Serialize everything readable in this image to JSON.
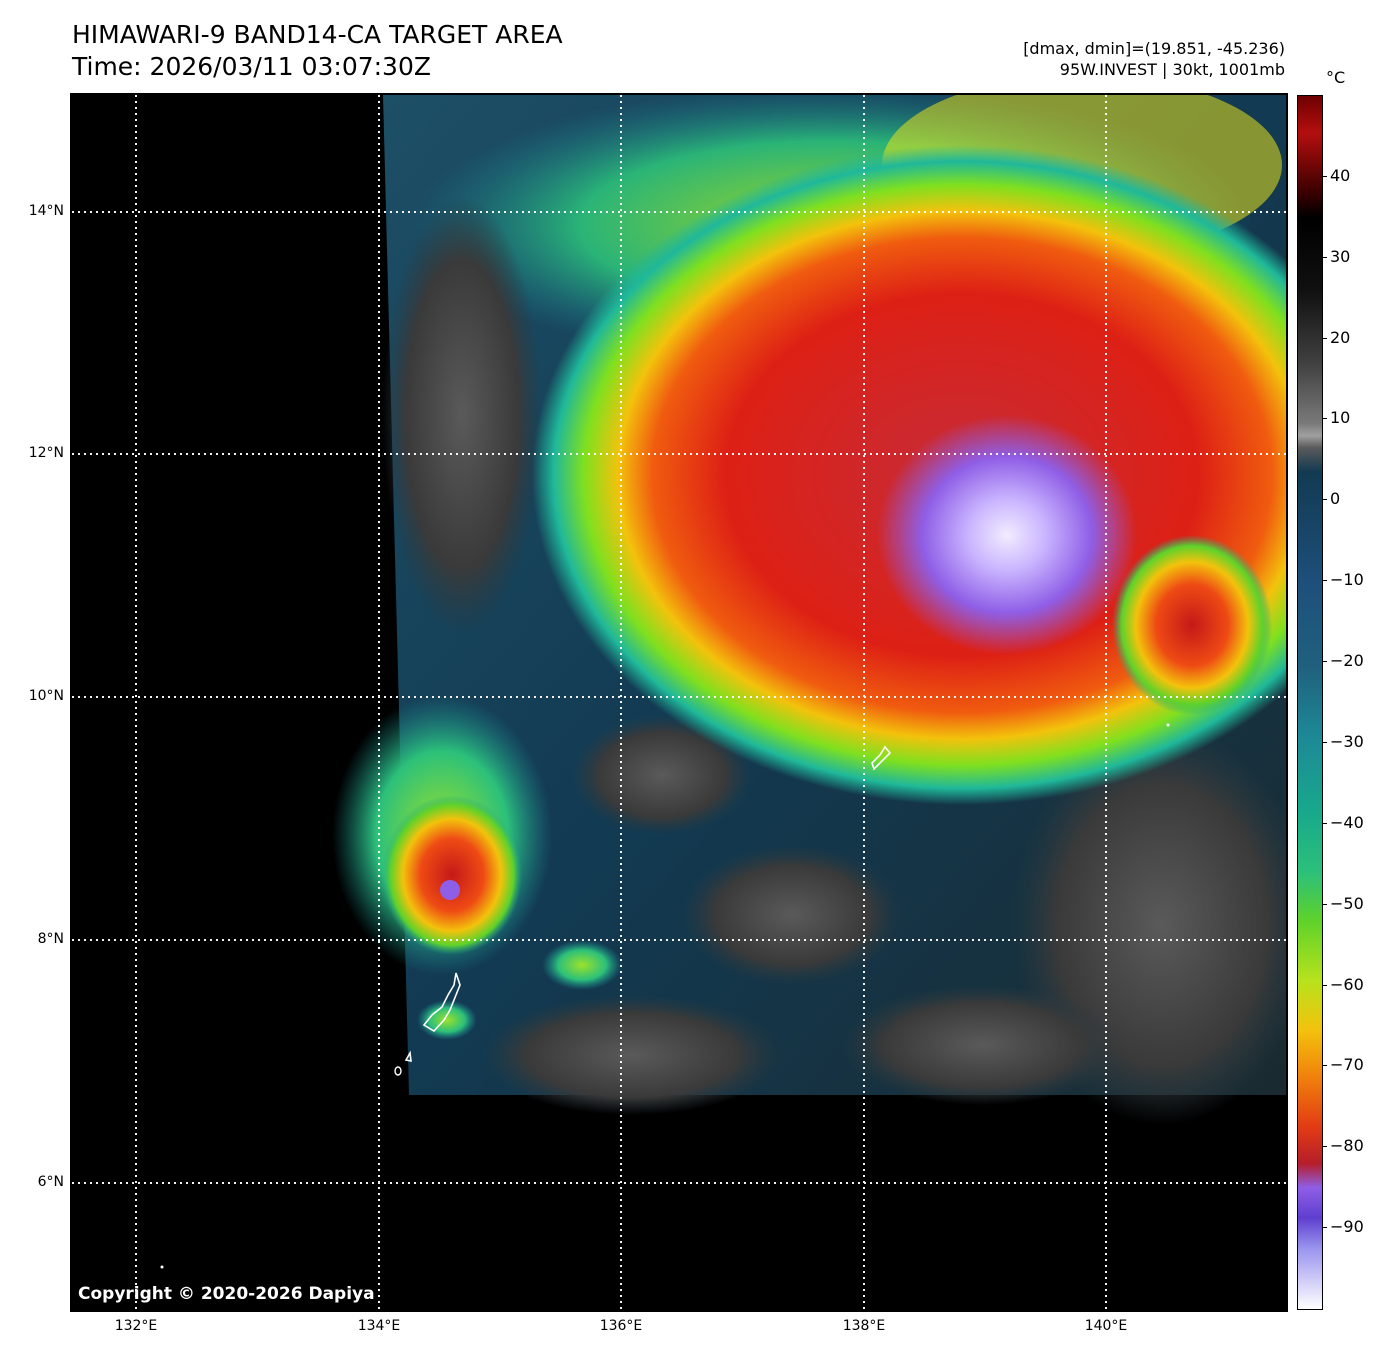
{
  "header": {
    "title_line1": "HIMAWARI-9 BAND14-CA TARGET AREA",
    "title_line2": "Time: 2026/03/11 03:07:30Z",
    "meta_line1": "[dmax, dmin]=(19.851, -45.236)",
    "meta_line2": "95W.INVEST | 30kt, 1001mb"
  },
  "map": {
    "lon_labels": [
      "132°E",
      "134°E",
      "136°E",
      "138°E",
      "140°E"
    ],
    "lat_labels": [
      "14°N",
      "12°N",
      "10°N",
      "8°N",
      "6°N"
    ],
    "copyright": "Copyright © 2020-2026 Dapiya"
  },
  "colorbar": {
    "unit": "°C",
    "ticks": [
      "40",
      "30",
      "20",
      "10",
      "0",
      "−10",
      "−20",
      "−30",
      "−40",
      "−50",
      "−60",
      "−70",
      "−80",
      "−90"
    ],
    "range": [
      -100,
      50
    ]
  },
  "colors": {
    "background_land": "#000000",
    "warm_ocean": "#123a52",
    "cold_core": "#dd2015",
    "overshoot": "#8f5ee6"
  }
}
